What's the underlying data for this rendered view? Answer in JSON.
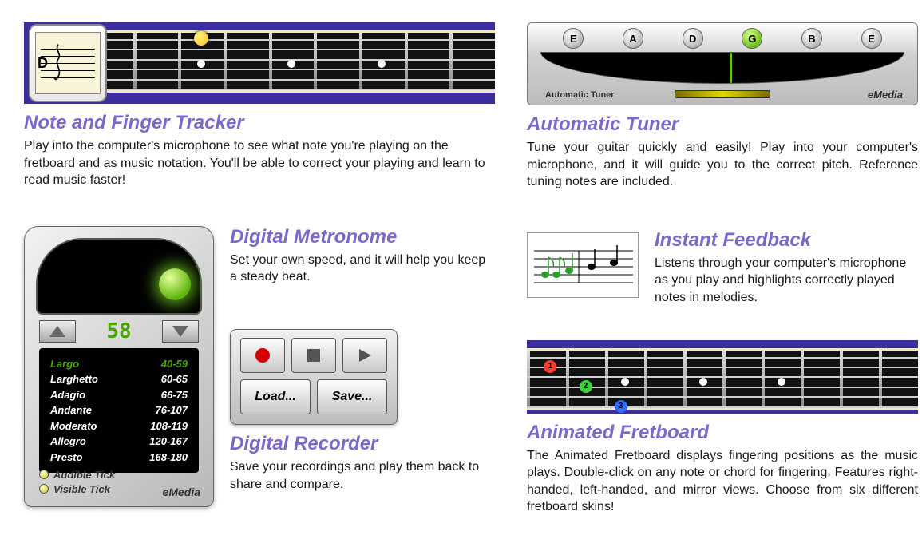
{
  "section1": {
    "title": "Note and Finger Tracker",
    "body": "Play into the computer's microphone to see what note you're playing on the fretboard and as music notation. You'll be able to correct your playing and learn to read music faster!",
    "notation_letter": "D",
    "fretboard": {
      "bg": "#3b2e9e",
      "fret_count": 9,
      "string_count": 6,
      "highlight_color": "#fbc02d"
    }
  },
  "tuner": {
    "title": "Automatic Tuner",
    "body": "Tune your guitar quickly and easily! Play into your computer's microphone, and it will guide you to the correct pitch. Reference tuning notes are included.",
    "notes": [
      "E",
      "A",
      "D",
      "G",
      "B",
      "E"
    ],
    "active_index": 3,
    "label": "Automatic Tuner",
    "brand": "eMedia"
  },
  "metronome": {
    "title": "Digital Metronome",
    "body": "Set your own speed, and it will help you keep a steady beat.",
    "bpm": "58",
    "active_tempo_index": 0,
    "active_color": "#4aa300",
    "inactive_color": "#ffffff",
    "tempos": [
      {
        "name": "Largo",
        "range": "40-59"
      },
      {
        "name": "Larghetto",
        "range": "60-65"
      },
      {
        "name": "Adagio",
        "range": "66-75"
      },
      {
        "name": "Andante",
        "range": "76-107"
      },
      {
        "name": "Moderato",
        "range": "108-119"
      },
      {
        "name": "Allegro",
        "range": "120-167"
      },
      {
        "name": "Presto",
        "range": "168-180"
      }
    ],
    "tick1": "Audible Tick",
    "tick2": "Visible Tick",
    "brand": "eMedia"
  },
  "recorder": {
    "title": "Digital Recorder",
    "body": "Save your recordings and play them back to share and compare.",
    "load": "Load...",
    "save": "Save..."
  },
  "feedback": {
    "title": "Instant Feedback",
    "body": "Listens through your computer's microphone as you play and highlights correctly played notes in melodies.",
    "correct_color": "#2aa02a",
    "pending_color": "#000000"
  },
  "animated": {
    "title": "Animated Fretboard",
    "body": "The Animated Fretboard displays fingering positions as the music plays. Double-click on any note or chord for fingering. Features right-handed, left-handed, and mirror views. Choose from six different fretboard skins!",
    "fingers": [
      {
        "n": "1",
        "color": "#ff3b2f"
      },
      {
        "n": "2",
        "color": "#3bd13b"
      },
      {
        "n": "3",
        "color": "#2f6cff"
      }
    ]
  }
}
